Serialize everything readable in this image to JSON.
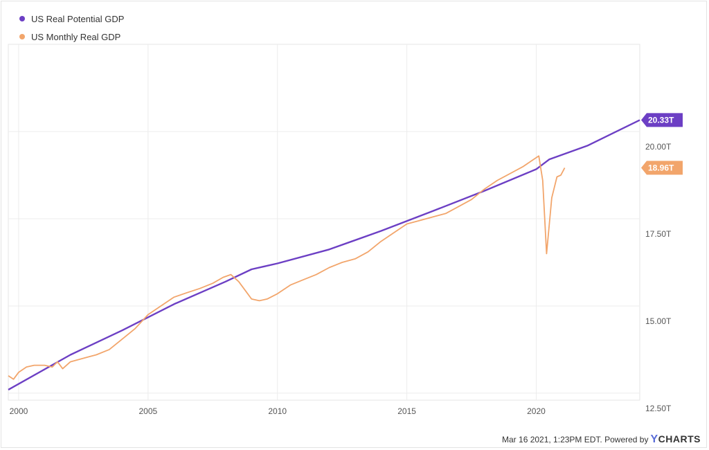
{
  "legend": [
    {
      "label": "US Real Potential GDP",
      "color": "#6c3fc4"
    },
    {
      "label": "US Monthly Real GDP",
      "color": "#f2a56b"
    }
  ],
  "footer": {
    "timestamp": "Mar 16 2021, 1:23PM EDT.",
    "powered_by": "Powered by",
    "brand_y": "Y",
    "brand_rest": "CHARTS"
  },
  "chart_data": {
    "type": "line",
    "xlim": [
      1999.6,
      2024.0
    ],
    "ylim": [
      12.3,
      22.5
    ],
    "x_ticks": [
      2000,
      2005,
      2010,
      2015,
      2020
    ],
    "x_tick_labels": [
      "2000",
      "2005",
      "2010",
      "2015",
      "2020"
    ],
    "y_ticks": [
      12.5,
      15.0,
      17.5,
      20.0
    ],
    "y_tick_labels": [
      "12.50T",
      "15.00T",
      "17.50T",
      "20.00T"
    ],
    "grid": true,
    "legend_position": "top-left",
    "series": [
      {
        "name": "US Real Potential GDP",
        "color": "#6c3fc4",
        "end_label": "20.33T",
        "x": [
          1999.6,
          2002,
          2004,
          2006,
          2008,
          2009,
          2010,
          2012,
          2014,
          2016,
          2018,
          2020,
          2020.5,
          2022,
          2024
        ],
        "y": [
          12.6,
          13.6,
          14.3,
          15.05,
          15.7,
          16.05,
          16.22,
          16.62,
          17.15,
          17.72,
          18.3,
          18.92,
          19.2,
          19.6,
          20.33
        ]
      },
      {
        "name": "US Monthly Real GDP",
        "color": "#f2a56b",
        "end_label": "18.96T",
        "x": [
          1999.6,
          1999.8,
          2000,
          2000.3,
          2000.6,
          2001,
          2001.3,
          2001.5,
          2001.7,
          2002,
          2002.5,
          2003,
          2003.5,
          2004,
          2004.5,
          2005,
          2005.5,
          2006,
          2006.5,
          2007,
          2007.5,
          2007.9,
          2008.2,
          2008.5,
          2008.8,
          2009,
          2009.3,
          2009.6,
          2010,
          2010.5,
          2011,
          2011.5,
          2012,
          2012.5,
          2013,
          2013.5,
          2014,
          2014.5,
          2015,
          2015.5,
          2016,
          2016.5,
          2017,
          2017.5,
          2018,
          2018.5,
          2019,
          2019.5,
          2019.8,
          2020.1,
          2020.25,
          2020.4,
          2020.6,
          2020.8,
          2020.95,
          2021.1
        ],
        "y": [
          13.0,
          12.9,
          13.1,
          13.25,
          13.3,
          13.3,
          13.25,
          13.4,
          13.2,
          13.4,
          13.5,
          13.6,
          13.75,
          14.05,
          14.35,
          14.75,
          15.0,
          15.25,
          15.38,
          15.5,
          15.65,
          15.82,
          15.9,
          15.7,
          15.4,
          15.2,
          15.15,
          15.2,
          15.35,
          15.6,
          15.75,
          15.9,
          16.1,
          16.25,
          16.35,
          16.55,
          16.85,
          17.1,
          17.35,
          17.45,
          17.55,
          17.65,
          17.85,
          18.05,
          18.35,
          18.6,
          18.8,
          19.0,
          19.15,
          19.3,
          18.6,
          16.5,
          18.1,
          18.7,
          18.75,
          18.96
        ]
      }
    ]
  }
}
